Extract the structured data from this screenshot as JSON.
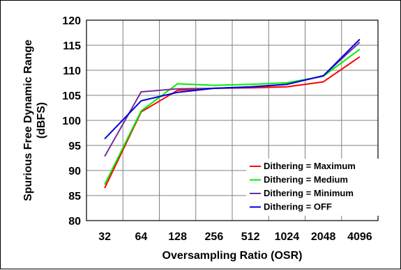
{
  "chart_data": {
    "type": "line",
    "title": "",
    "xlabel": "Oversampling Ratio (OSR)",
    "ylabel_lines": [
      "Spurious Free Dynamic Range",
      "(dBFS)"
    ],
    "categories": [
      "32",
      "64",
      "128",
      "256",
      "512",
      "1024",
      "2048",
      "4096"
    ],
    "ylim": [
      80,
      120
    ],
    "yticks": [
      80,
      85,
      90,
      95,
      100,
      105,
      110,
      115,
      120
    ],
    "grid": true,
    "legend_position": "bottom-right",
    "series": [
      {
        "name": "Dithering = Maximum",
        "color": "#ff0000",
        "values": [
          86.5,
          101.7,
          106.0,
          106.4,
          106.5,
          106.7,
          107.7,
          112.7
        ]
      },
      {
        "name": "Dithering = Medium",
        "color": "#00ee00",
        "values": [
          87.2,
          101.9,
          107.3,
          107.0,
          107.2,
          107.5,
          108.8,
          114.2
        ]
      },
      {
        "name": "Dithering = Minimum",
        "color": "#7030a0",
        "values": [
          92.8,
          105.7,
          106.3,
          106.4,
          106.6,
          107.2,
          108.9,
          115.6
        ]
      },
      {
        "name": "Dithering = OFF",
        "color": "#0000dd",
        "values": [
          96.3,
          103.9,
          105.6,
          106.4,
          106.7,
          107.2,
          108.9,
          116.2
        ]
      }
    ]
  }
}
